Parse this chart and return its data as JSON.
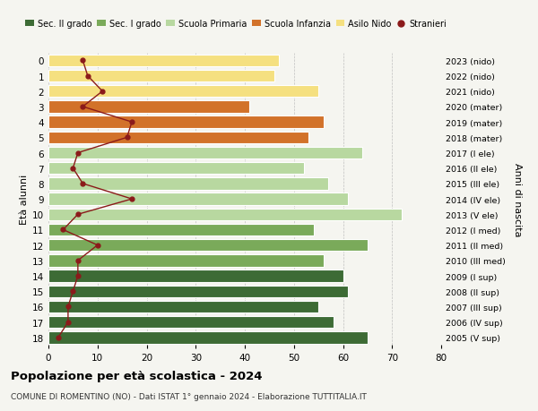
{
  "ages": [
    18,
    17,
    16,
    15,
    14,
    13,
    12,
    11,
    10,
    9,
    8,
    7,
    6,
    5,
    4,
    3,
    2,
    1,
    0
  ],
  "years": [
    "2005 (V sup)",
    "2006 (IV sup)",
    "2007 (III sup)",
    "2008 (II sup)",
    "2009 (I sup)",
    "2010 (III med)",
    "2011 (II med)",
    "2012 (I med)",
    "2013 (V ele)",
    "2014 (IV ele)",
    "2015 (III ele)",
    "2016 (II ele)",
    "2017 (I ele)",
    "2018 (mater)",
    "2019 (mater)",
    "2020 (mater)",
    "2021 (nido)",
    "2022 (nido)",
    "2023 (nido)"
  ],
  "bar_values": [
    65,
    58,
    55,
    61,
    60,
    56,
    65,
    54,
    72,
    61,
    57,
    52,
    64,
    53,
    56,
    41,
    55,
    46,
    47
  ],
  "stranieri": [
    2,
    4,
    4,
    5,
    6,
    6,
    10,
    3,
    6,
    17,
    7,
    5,
    6,
    16,
    17,
    7,
    11,
    8,
    7
  ],
  "bar_colors_by_age": {
    "18": "#3d6b35",
    "17": "#3d6b35",
    "16": "#3d6b35",
    "15": "#3d6b35",
    "14": "#3d6b35",
    "13": "#7aaa5a",
    "12": "#7aaa5a",
    "11": "#7aaa5a",
    "10": "#b8d8a0",
    "9": "#b8d8a0",
    "8": "#b8d8a0",
    "7": "#b8d8a0",
    "6": "#b8d8a0",
    "5": "#d2722a",
    "4": "#d2722a",
    "3": "#d2722a",
    "2": "#f5e080",
    "1": "#f5e080",
    "0": "#f5e080"
  },
  "stranieri_color": "#8b1a1a",
  "title": "Popolazione per età scolastica - 2024",
  "subtitle": "COMUNE DI ROMENTINO (NO) - Dati ISTAT 1° gennaio 2024 - Elaborazione TUTTITALIA.IT",
  "ylabel_left": "Età alunni",
  "ylabel_right": "Anni di nascita",
  "xlim": [
    0,
    80
  ],
  "xticks": [
    0,
    10,
    20,
    30,
    40,
    50,
    60,
    70,
    80
  ],
  "legend_labels": [
    "Sec. II grado",
    "Sec. I grado",
    "Scuola Primaria",
    "Scuola Infanzia",
    "Asilo Nido",
    "Stranieri"
  ],
  "legend_colors": [
    "#3d6b35",
    "#7aaa5a",
    "#b8d8a0",
    "#d2722a",
    "#f5e080",
    "#8b1a1a"
  ],
  "bg_color": "#f5f5f0"
}
